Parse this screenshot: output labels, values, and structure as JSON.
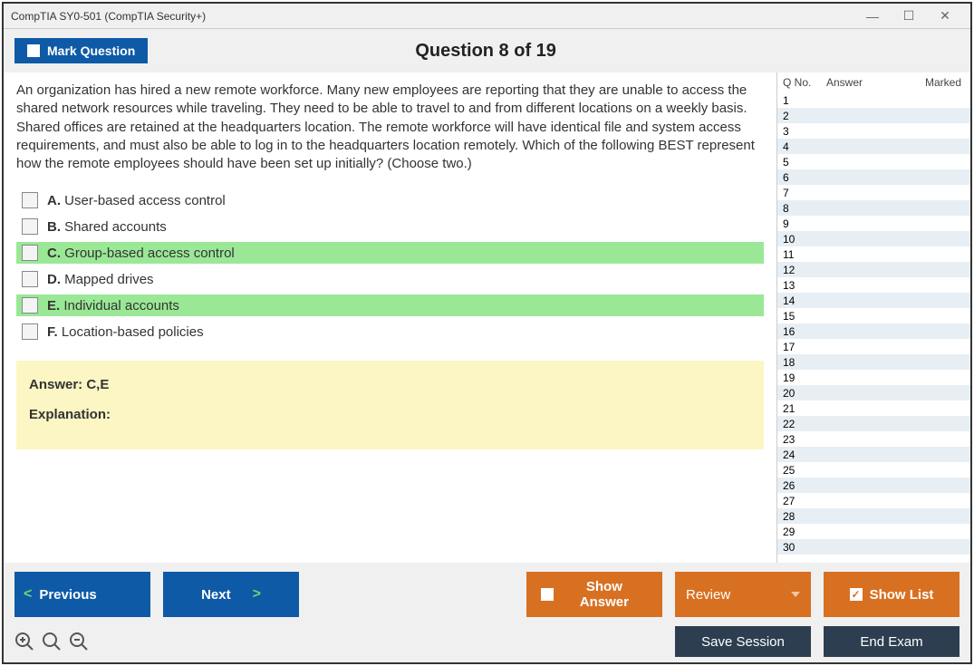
{
  "window": {
    "title": "CompTIA SY0-501 (CompTIA Security+)"
  },
  "header": {
    "mark_label": "Mark Question",
    "question_title": "Question 8 of 19"
  },
  "question": {
    "text": "An organization has hired a new remote workforce. Many new employees are reporting that they are unable to access the shared network resources while traveling. They need to be able to travel to and from different locations on a weekly basis. Shared offices are retained at the headquarters location. The remote workforce will have identical file and system access requirements, and must also be able to log in to the headquarters location remotely. Which of the following BEST represent how the remote employees should have been set up initially? (Choose two.)",
    "options": [
      {
        "letter": "A.",
        "text": "User-based access control",
        "correct": false
      },
      {
        "letter": "B.",
        "text": "Shared accounts",
        "correct": false
      },
      {
        "letter": "C.",
        "text": "Group-based access control",
        "correct": true
      },
      {
        "letter": "D.",
        "text": "Mapped drives",
        "correct": false
      },
      {
        "letter": "E.",
        "text": "Individual accounts",
        "correct": true
      },
      {
        "letter": "F.",
        "text": "Location-based policies",
        "correct": false
      }
    ]
  },
  "answer": {
    "label": "Answer: C,E",
    "explanation_label": "Explanation:"
  },
  "sidebar": {
    "col_qno": "Q No.",
    "col_answer": "Answer",
    "col_marked": "Marked",
    "count": 30
  },
  "footer": {
    "previous": "Previous",
    "next": "Next",
    "show_answer": "Show Answer",
    "review": "Review",
    "show_list": "Show List",
    "save_session": "Save Session",
    "end_exam": "End Exam"
  },
  "colors": {
    "blue": "#0e5aa7",
    "orange": "#d87022",
    "dark": "#2d3e50",
    "highlight": "#9ae896",
    "answer_bg": "#fbf6c4"
  }
}
